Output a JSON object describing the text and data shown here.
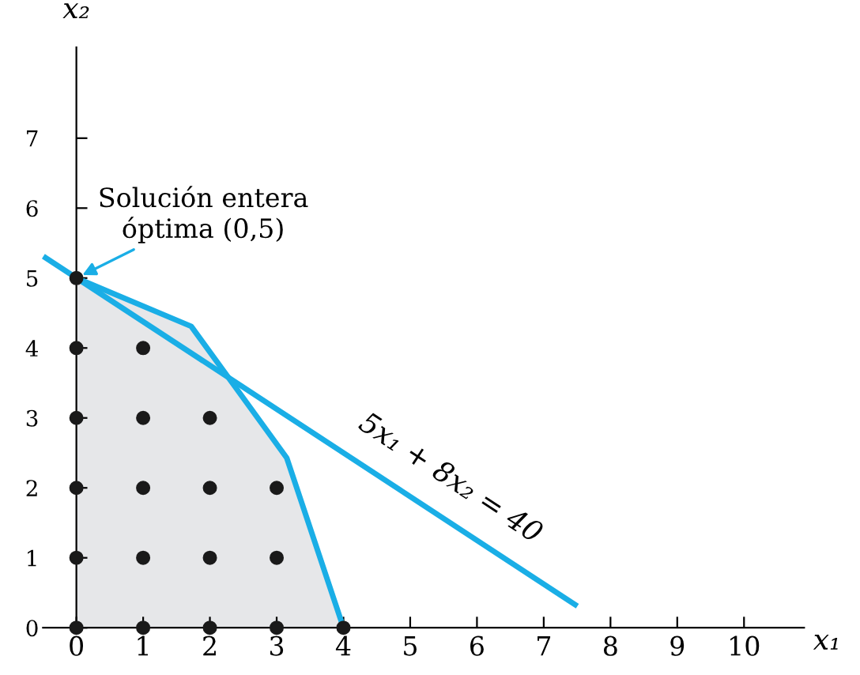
{
  "chart_data": {
    "type": "line",
    "xlabel": "x₁",
    "ylabel": "x₂",
    "xlim": [
      -0.5,
      10.9
    ],
    "ylim": [
      0,
      8.3
    ],
    "xticks": [
      0,
      1,
      2,
      3,
      4,
      5,
      6,
      7,
      8,
      9,
      10
    ],
    "yticks": [
      0,
      1,
      2,
      3,
      4,
      5,
      6,
      7
    ],
    "grid": false,
    "legend": false,
    "series": [
      {
        "color": "#1aaee6",
        "x": [
          -0.46,
          7.47
        ],
        "values": [
          5.29,
          0.33
        ]
      },
      {
        "type": "area",
        "color": "#e6e7e9",
        "x": [
          0,
          1.72,
          3.15,
          4
        ],
        "values": [
          5,
          4.31,
          2.43,
          0
        ]
      },
      {
        "type": "scatter",
        "color": "#1a1a1a",
        "marker": "circle",
        "x": [
          0,
          0,
          0,
          0,
          0,
          0,
          1,
          1,
          1,
          1,
          1,
          2,
          2,
          2,
          2,
          3,
          3,
          3,
          4
        ],
        "values": [
          0,
          1,
          2,
          3,
          4,
          5,
          0,
          1,
          2,
          3,
          4,
          0,
          1,
          2,
          3,
          0,
          1,
          2,
          0
        ]
      }
    ],
    "annotations": [
      {
        "text": "Solución entera\nóptima (0,5)",
        "x": 0,
        "y": 5
      },
      {
        "text": "5x₁ + 8x₂ = 40",
        "x": 5.4,
        "y": 1.625
      }
    ]
  }
}
